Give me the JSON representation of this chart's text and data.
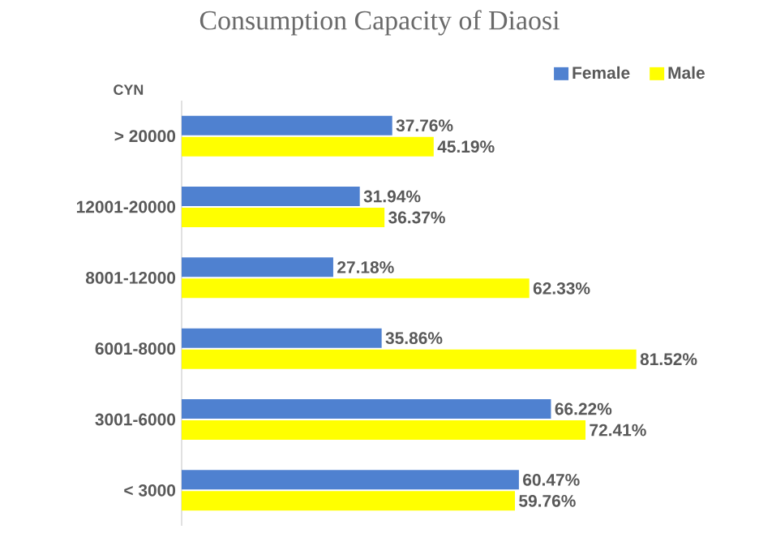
{
  "chart_data": {
    "type": "bar",
    "orientation": "horizontal",
    "title": "Consumption Capacity of Diaosi",
    "ylabel": "CYN",
    "categories": [
      "> 20000",
      "12001-20000",
      "8001-12000",
      "6001-8000",
      "3001-6000",
      "< 3000"
    ],
    "series": [
      {
        "name": "Female",
        "color": "#4f81d0",
        "values": [
          37.76,
          31.94,
          27.18,
          35.86,
          66.22,
          60.47
        ],
        "value_labels": [
          "37.76%",
          "31.94%",
          "27.18%",
          "35.86%",
          "66.22%",
          "60.47%"
        ]
      },
      {
        "name": "Male",
        "color": "#ffff00",
        "values": [
          45.19,
          36.37,
          62.33,
          81.52,
          72.41,
          59.76
        ],
        "value_labels": [
          "45.19%",
          "36.37%",
          "62.33%",
          "81.52%",
          "72.41%",
          "59.76%"
        ]
      }
    ],
    "legend": "top right"
  }
}
